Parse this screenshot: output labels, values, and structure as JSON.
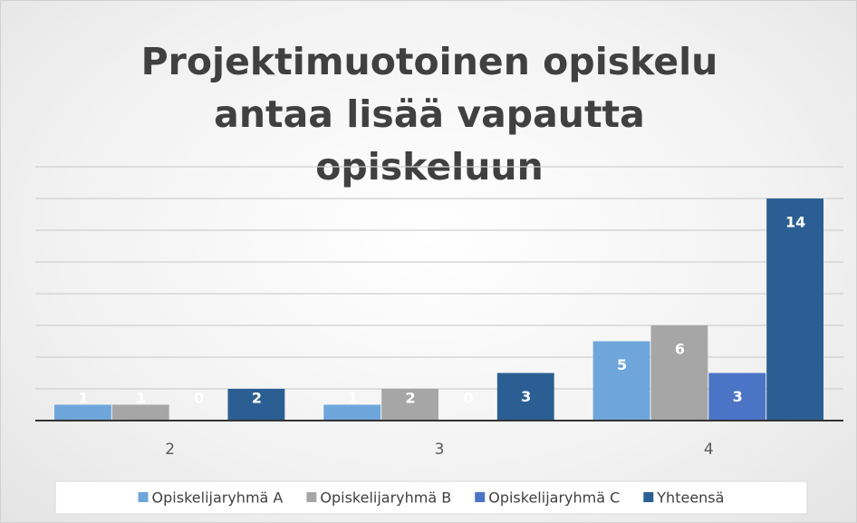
{
  "chart_data": {
    "type": "bar",
    "title": "Projektimuotoinen opiskelu antaa lisää vapautta opiskeluun",
    "categories": [
      "2",
      "3",
      "4"
    ],
    "series": [
      {
        "name": "Opiskelijaryhmä A",
        "color": "#6ea6dc",
        "values": [
          1,
          1,
          5
        ]
      },
      {
        "name": "Opiskelijaryhmä B",
        "color": "#a6a6a6",
        "values": [
          1,
          2,
          6
        ]
      },
      {
        "name": "Opiskelijaryhmä C",
        "color": "#4c74c6",
        "values": [
          0,
          0,
          3
        ]
      },
      {
        "name": "Yhteensä",
        "color": "#2b5f93",
        "values": [
          2,
          3,
          14
        ]
      }
    ],
    "ylim": [
      0,
      16
    ],
    "yticks": [
      0,
      2,
      4,
      6,
      8,
      10,
      12,
      14,
      16
    ],
    "grid": true,
    "legend": "bottom"
  }
}
